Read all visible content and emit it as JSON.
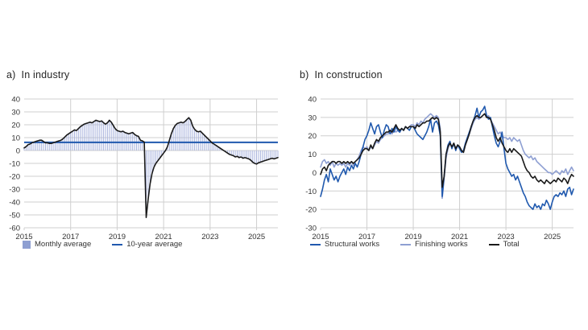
{
  "page": {
    "background": "#ffffff"
  },
  "colors": {
    "accent_blue": "#2059ae",
    "periwinkle": "#8e9fd2",
    "bar_fill": "#a8b3dd",
    "black_line": "#1a1a1a",
    "grid": "#cfcfcf",
    "axis_text": "#333333"
  },
  "chart_data": [
    {
      "id": "industry",
      "type": "bar",
      "panel_label": "a)",
      "title": "In industry",
      "x_start_year": 2015,
      "frequency": "monthly",
      "x_range": "2015-01 to 2025-12",
      "xticks": [
        2015,
        2017,
        2019,
        2021,
        2023,
        2025
      ],
      "ylim": [
        -60,
        40
      ],
      "ytick_step": 10,
      "grid": true,
      "legend_position": "bottom",
      "reference_line": {
        "label": "10-year average",
        "value": 6.3,
        "color": "#2059ae"
      },
      "series": [
        {
          "name": "Monthly average",
          "bar_color": "#a8b3dd",
          "line_color": "#1a1a1a",
          "width": 1.6,
          "zorder": 3,
          "values": [
            2,
            3,
            4.5,
            5,
            6,
            6.5,
            7,
            7.5,
            8,
            8,
            7,
            6,
            6,
            5.5,
            5.5,
            6,
            6.5,
            7,
            7.5,
            8,
            9,
            10.5,
            12,
            13,
            14,
            15,
            16,
            15.5,
            17,
            18.5,
            19.5,
            20.5,
            21,
            21.5,
            22,
            21.5,
            22.5,
            23.5,
            23,
            22.5,
            23,
            21.5,
            20.5,
            21.5,
            23.5,
            22,
            19.5,
            17,
            15.5,
            15,
            14.5,
            15,
            14,
            13.5,
            13,
            13.5,
            14,
            12.5,
            11.5,
            11,
            8,
            7.5,
            6.5,
            -52,
            -38,
            -26,
            -18,
            -13,
            -10,
            -8,
            -6,
            -4,
            -2,
            0,
            3,
            8,
            13,
            17,
            19.5,
            21,
            21.5,
            22,
            21.5,
            22.5,
            24,
            25.5,
            23.5,
            19,
            16.5,
            15,
            14.5,
            15,
            13.5,
            12,
            10.5,
            9,
            7.5,
            6,
            5,
            4,
            3,
            2,
            1,
            0,
            -1,
            -2,
            -3,
            -3.5,
            -4,
            -5,
            -4.5,
            -5.5,
            -5,
            -6,
            -5.5,
            -6,
            -6.5,
            -7.5,
            -9,
            -10,
            -10.5,
            -9.5,
            -9,
            -8.5,
            -8,
            -7.5,
            -7,
            -6.5,
            -6,
            -6.5,
            -6,
            -5.5
          ]
        }
      ],
      "legend": [
        {
          "label": "Monthly average",
          "swatch": "square",
          "color": "#8e9fd2"
        },
        {
          "label": "10-year average",
          "swatch": "line",
          "color": "#2059ae"
        }
      ]
    },
    {
      "id": "construction",
      "type": "line",
      "panel_label": "b)",
      "title": "In construction",
      "x_start_year": 2015,
      "frequency": "monthly",
      "x_range": "2015-01 to 2025-12",
      "xticks": [
        2015,
        2017,
        2019,
        2021,
        2023,
        2025
      ],
      "ylim": [
        -30,
        40
      ],
      "ytick_step": 10,
      "grid": true,
      "legend_position": "bottom",
      "series": [
        {
          "name": "Structural works",
          "color": "#2059ae",
          "width": 1.6,
          "zorder": 2,
          "values": [
            -13,
            -9,
            -4,
            -1,
            -5,
            2,
            -1,
            -4,
            -2,
            -5,
            -2,
            0,
            2,
            -1,
            3,
            1,
            4,
            2,
            5,
            3,
            6,
            10,
            14,
            18,
            20,
            23,
            27,
            24,
            21,
            25,
            26,
            22,
            19,
            23,
            26,
            25,
            21,
            24,
            22,
            25,
            23,
            22,
            24,
            23,
            25,
            24,
            23,
            25,
            25,
            23,
            21,
            20,
            19,
            18,
            20,
            22,
            25,
            29,
            22,
            27,
            28,
            26,
            20,
            -13,
            -2,
            10,
            15,
            17,
            13,
            16,
            12,
            15,
            13,
            11,
            12,
            16,
            19,
            22,
            25,
            28,
            31,
            35,
            30,
            33,
            34,
            36,
            31,
            29,
            30,
            25,
            20,
            16,
            14,
            17,
            22,
            13,
            5,
            2,
            0,
            -2,
            -1,
            -4,
            -2,
            -5,
            -8,
            -11,
            -13,
            -16,
            -18,
            -19,
            -20,
            -17,
            -19,
            -18,
            -20,
            -17,
            -18,
            -15,
            -17,
            -20,
            -16,
            -13,
            -12,
            -13,
            -11,
            -12,
            -10,
            -13,
            -9,
            -8,
            -12,
            -9
          ]
        },
        {
          "name": "Finishing works",
          "color": "#8e9fd2",
          "width": 1.6,
          "zorder": 1,
          "values": [
            3,
            6,
            7,
            5,
            6,
            4,
            6,
            3,
            5,
            4,
            5,
            4,
            5,
            3,
            5,
            4,
            6,
            4,
            6,
            7,
            9,
            12,
            14,
            13,
            14,
            12,
            14,
            13,
            15,
            17,
            16,
            18,
            19,
            20,
            21,
            21,
            22,
            21,
            23,
            22,
            23,
            22,
            24,
            23,
            25,
            24,
            25,
            26,
            26,
            25,
            27,
            26,
            28,
            27,
            29,
            30,
            31,
            32,
            31,
            30,
            31,
            30,
            24,
            -14,
            -3,
            8,
            13,
            16,
            14,
            15,
            13,
            15,
            14,
            12,
            11,
            15,
            18,
            21,
            24,
            27,
            29,
            30,
            29,
            30,
            31,
            32,
            30,
            31,
            29,
            27,
            25,
            23,
            21,
            22,
            20,
            19,
            19,
            18,
            19,
            17,
            19,
            18,
            17,
            18,
            15,
            12,
            10,
            9,
            8,
            9,
            7,
            8,
            6,
            5,
            4,
            3,
            2,
            1,
            0,
            0,
            -1,
            0,
            1,
            0,
            -1,
            1,
            0,
            2,
            -1,
            1,
            3,
            1
          ]
        },
        {
          "name": "Total",
          "color": "#1a1a1a",
          "width": 1.6,
          "zorder": 3,
          "values": [
            -1,
            2,
            3,
            1,
            4,
            5,
            6,
            6,
            5,
            6,
            6,
            5,
            6,
            5,
            6,
            5,
            6,
            5,
            6,
            7,
            8,
            10,
            12,
            13,
            13,
            12,
            15,
            13,
            16,
            18,
            17,
            19,
            20,
            21,
            22,
            22,
            23,
            22,
            24,
            26,
            24,
            23,
            24,
            23,
            25,
            24,
            25,
            25,
            25,
            24,
            26,
            25,
            26,
            27,
            27,
            28,
            28,
            29,
            30,
            29,
            30,
            29,
            22,
            -8,
            -2,
            10,
            14,
            16,
            14,
            16,
            13,
            15,
            14,
            12,
            11,
            15,
            18,
            21,
            25,
            28,
            30,
            31,
            30,
            30,
            31,
            32,
            30,
            30,
            29,
            26,
            23,
            19,
            17,
            19,
            16,
            14,
            12,
            11,
            13,
            11,
            13,
            12,
            11,
            10,
            9,
            6,
            3,
            1,
            0,
            -2,
            -3,
            -2,
            -4,
            -5,
            -4,
            -5,
            -6,
            -4,
            -5,
            -6,
            -5,
            -4,
            -5,
            -3,
            -4,
            -5,
            -3,
            -4,
            -6,
            -3,
            -1,
            -2
          ]
        }
      ],
      "legend": [
        {
          "label": "Structural works",
          "swatch": "line",
          "color": "#2059ae"
        },
        {
          "label": "Finishing works",
          "swatch": "line",
          "color": "#8e9fd2"
        },
        {
          "label": "Total",
          "swatch": "line",
          "color": "#1a1a1a"
        }
      ]
    }
  ]
}
